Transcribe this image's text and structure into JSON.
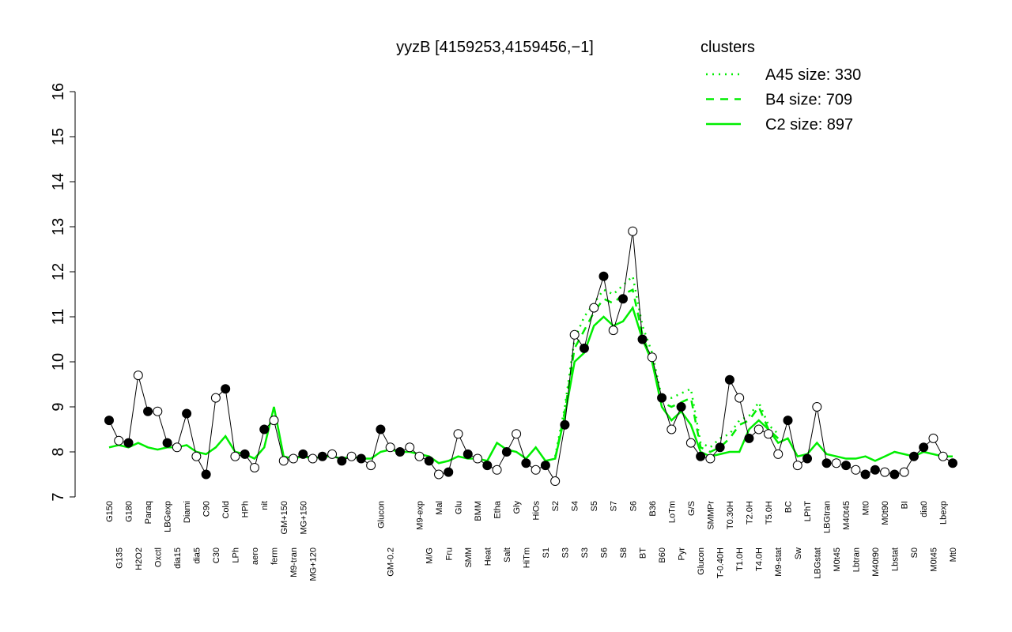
{
  "chart_data": {
    "type": "line",
    "title": "yyzB [4159253,4159456,−1]",
    "legend_title": "clusters",
    "legend_color": "#00ee00",
    "point_color": "#000000",
    "categories": [
      "G150",
      "G135",
      "G180",
      "H2O2",
      "Paraq",
      "Oxctl",
      "LBGexp",
      "dia15",
      "Diami",
      "dia5",
      "C90",
      "C30",
      "Cold",
      "LPh",
      "HPh",
      "aero",
      "nit",
      "ferm",
      "GM+150",
      "M9-tran",
      "MG+150",
      "MG+120",
      null,
      null,
      null,
      null,
      null,
      null,
      "Glucon",
      "GM-0.2",
      null,
      null,
      "M9-exp",
      "M/G",
      "Mal",
      "Fru",
      "Glu",
      "SMM",
      "BMM",
      "Heat",
      "Etha",
      "Salt",
      "Gly",
      "HiTm",
      "HiOs",
      "S1",
      "S2",
      "S3",
      "S4",
      "S3",
      "S5",
      "S6",
      "S7",
      "S8",
      "S6",
      "BT",
      "B36",
      "B60",
      "LoTm",
      "Pyr",
      "G/S",
      "Glucon",
      "SMMPr",
      "T-0.40H",
      "T0.30H",
      "T1.0H",
      "T2.0H",
      "T4.0H",
      "T5.0H",
      "M9-stat",
      "BC",
      "Sw",
      "LPhT",
      "LBGstat",
      "LBGtran",
      "M0t45",
      "M40t45",
      "Lbtran",
      "Mt0",
      "M40t90",
      "M0t90",
      "Lbstat",
      "BI",
      "S0",
      "dia0",
      "M0t45",
      "Lbexp",
      "Mt0"
    ],
    "values": [
      8.7,
      8.25,
      8.2,
      9.7,
      8.9,
      8.9,
      8.2,
      8.1,
      8.85,
      7.9,
      7.5,
      9.2,
      9.4,
      7.9,
      7.95,
      7.65,
      8.5,
      8.7,
      7.8,
      7.85,
      7.95,
      7.85,
      7.9,
      7.95,
      7.8,
      7.9,
      7.85,
      7.7,
      8.5,
      8.1,
      8.0,
      8.1,
      7.9,
      7.8,
      7.5,
      7.55,
      8.4,
      7.95,
      7.85,
      7.7,
      7.6,
      8.0,
      8.4,
      7.75,
      7.6,
      7.7,
      7.35,
      8.6,
      10.6,
      10.3,
      11.2,
      11.9,
      10.7,
      11.4,
      12.9,
      10.5,
      10.1,
      9.2,
      8.5,
      9.0,
      8.2,
      7.9,
      7.85,
      8.1,
      9.6,
      9.2,
      8.3,
      8.5,
      8.4,
      7.95,
      8.7,
      7.7,
      7.85,
      9.0,
      7.75,
      7.75,
      7.7,
      7.6,
      7.5,
      7.6,
      7.55,
      7.5,
      7.55,
      7.9,
      8.1,
      8.3,
      7.9,
      7.75
    ],
    "filled": [
      true,
      false,
      true,
      false,
      true,
      false,
      true,
      false,
      true,
      false,
      true,
      false,
      true,
      false,
      true,
      false,
      true,
      false,
      false,
      false,
      true,
      false,
      true,
      false,
      true,
      false,
      true,
      false,
      true,
      false,
      true,
      false,
      false,
      true,
      false,
      true,
      false,
      true,
      false,
      true,
      false,
      true,
      false,
      true,
      false,
      true,
      false,
      true,
      false,
      true,
      false,
      true,
      false,
      true,
      false,
      true,
      false,
      true,
      false,
      true,
      false,
      true,
      false,
      true,
      true,
      false,
      true,
      false,
      false,
      false,
      true,
      false,
      true,
      false,
      true,
      false,
      true,
      false,
      true,
      true,
      false,
      true,
      false,
      true,
      true,
      false,
      false,
      true
    ],
    "series": [
      {
        "name": "A45 size: 330",
        "color": "#00ee00",
        "dash": "dotted",
        "values": [
          null,
          null,
          null,
          null,
          null,
          null,
          null,
          null,
          null,
          null,
          null,
          null,
          null,
          null,
          null,
          null,
          null,
          null,
          null,
          null,
          null,
          null,
          null,
          null,
          null,
          null,
          null,
          null,
          null,
          null,
          null,
          null,
          null,
          null,
          null,
          null,
          null,
          null,
          null,
          null,
          null,
          null,
          null,
          null,
          null,
          null,
          7.9,
          9.0,
          10.5,
          11.0,
          11.3,
          11.6,
          11.5,
          11.7,
          11.9,
          10.8,
          10.2,
          9.2,
          9.2,
          9.3,
          9.4,
          8.2,
          8.1,
          8.3,
          8.4,
          8.7,
          8.8,
          9.1,
          8.6,
          8.4,
          null,
          null,
          null,
          null,
          null,
          null,
          null,
          null,
          null,
          null,
          null,
          null,
          null,
          null,
          null,
          null,
          null,
          null
        ]
      },
      {
        "name": "B4 size: 709",
        "color": "#00ee00",
        "dash": "dashed",
        "values": [
          null,
          null,
          null,
          null,
          null,
          null,
          null,
          null,
          null,
          null,
          null,
          null,
          null,
          null,
          null,
          null,
          null,
          null,
          null,
          null,
          null,
          null,
          null,
          null,
          null,
          null,
          null,
          null,
          null,
          null,
          null,
          null,
          null,
          null,
          null,
          null,
          null,
          null,
          null,
          null,
          null,
          null,
          null,
          null,
          null,
          null,
          7.85,
          8.9,
          10.3,
          10.7,
          11.1,
          11.4,
          11.3,
          11.5,
          11.6,
          10.6,
          10.0,
          9.1,
          9.0,
          9.1,
          9.2,
          8.1,
          8.0,
          8.1,
          8.3,
          8.6,
          8.7,
          9.0,
          8.5,
          8.3,
          null,
          null,
          null,
          null,
          null,
          null,
          null,
          null,
          null,
          null,
          null,
          null,
          null,
          null,
          null,
          null,
          null,
          null
        ]
      },
      {
        "name": "C2 size: 897",
        "color": "#00ee00",
        "dash": "solid",
        "values": [
          8.1,
          8.15,
          8.1,
          8.2,
          8.1,
          8.05,
          8.1,
          8.1,
          8.15,
          8.0,
          7.95,
          8.1,
          8.35,
          8.0,
          7.95,
          7.85,
          8.1,
          9.0,
          7.9,
          7.85,
          7.9,
          7.85,
          7.9,
          7.9,
          7.85,
          7.9,
          7.85,
          7.85,
          8.0,
          8.05,
          8.0,
          8.0,
          7.95,
          7.9,
          7.75,
          7.8,
          7.9,
          7.85,
          7.85,
          7.8,
          8.2,
          8.05,
          8.0,
          7.85,
          8.1,
          7.8,
          7.85,
          8.8,
          10.0,
          10.2,
          10.8,
          11.0,
          10.8,
          10.9,
          11.2,
          10.5,
          10.0,
          9.0,
          8.7,
          8.9,
          8.6,
          8.0,
          7.9,
          7.95,
          8.0,
          8.0,
          8.5,
          8.7,
          8.5,
          8.2,
          8.3,
          7.9,
          7.95,
          8.2,
          7.95,
          7.9,
          7.85,
          7.85,
          7.9,
          7.8,
          7.9,
          8.0,
          7.95,
          7.9,
          8.0,
          7.95,
          7.9,
          7.9
        ]
      }
    ],
    "ylim": [
      7,
      16
    ],
    "yticks": [
      7,
      8,
      9,
      10,
      11,
      12,
      13,
      14,
      15,
      16
    ]
  }
}
